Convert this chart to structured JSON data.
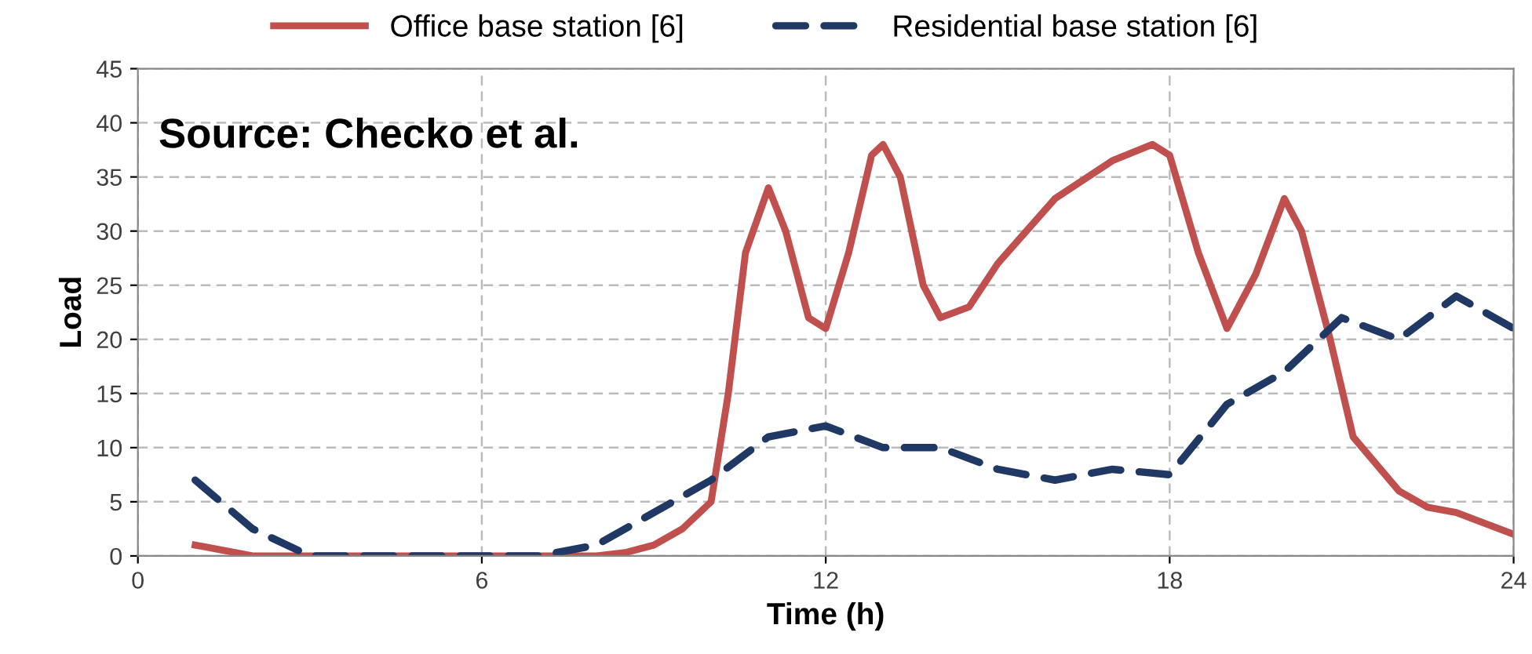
{
  "chart_data": {
    "type": "line",
    "xlabel": "Time (h)",
    "ylabel": "Load",
    "annotations": [
      "Source: Checko et al."
    ],
    "xlim": [
      0,
      24
    ],
    "xticks": [
      0,
      6,
      12,
      18,
      24
    ],
    "ylim": [
      0,
      45
    ],
    "yticks": [
      0,
      5,
      10,
      15,
      20,
      25,
      30,
      35,
      40,
      45
    ],
    "grid": true,
    "legend": "top",
    "marker": "none",
    "series": [
      {
        "name": "Office base station [6]",
        "color": "#c0504d",
        "line_style": "solid",
        "x": [
          1,
          2,
          3,
          4,
          5,
          6,
          7,
          8,
          8.5,
          9,
          9.5,
          10,
          10.3,
          10.6,
          11,
          11.3,
          11.7,
          12,
          12.4,
          12.8,
          13,
          13.3,
          13.7,
          14,
          14.5,
          15,
          16,
          17,
          17.7,
          18,
          18.5,
          19,
          19.5,
          20,
          20.3,
          20.8,
          21.2,
          22,
          22.5,
          23,
          24
        ],
        "values": [
          1,
          0,
          0,
          0,
          0,
          0,
          0,
          0,
          0.3,
          1,
          2.5,
          5,
          15,
          28,
          34,
          30,
          22,
          21,
          28,
          37,
          38,
          35,
          25,
          22,
          23,
          27,
          33,
          36.5,
          38,
          37,
          28,
          21,
          26,
          33,
          30,
          20,
          11,
          6,
          4.5,
          4,
          2
        ]
      },
      {
        "name": "Residential base station [6]",
        "color": "#1f3864",
        "line_style": "dashed",
        "x": [
          1,
          2,
          3,
          4,
          5,
          6,
          7,
          8,
          9,
          10,
          11,
          12,
          13,
          14,
          15,
          16,
          17,
          18,
          19,
          20,
          21,
          22,
          23,
          24
        ],
        "values": [
          7,
          2.5,
          0,
          0,
          0,
          0,
          0,
          1,
          4,
          7,
          11,
          12,
          10,
          10,
          8,
          7,
          8,
          7.5,
          14,
          17,
          22,
          20,
          24,
          21
        ]
      }
    ]
  }
}
